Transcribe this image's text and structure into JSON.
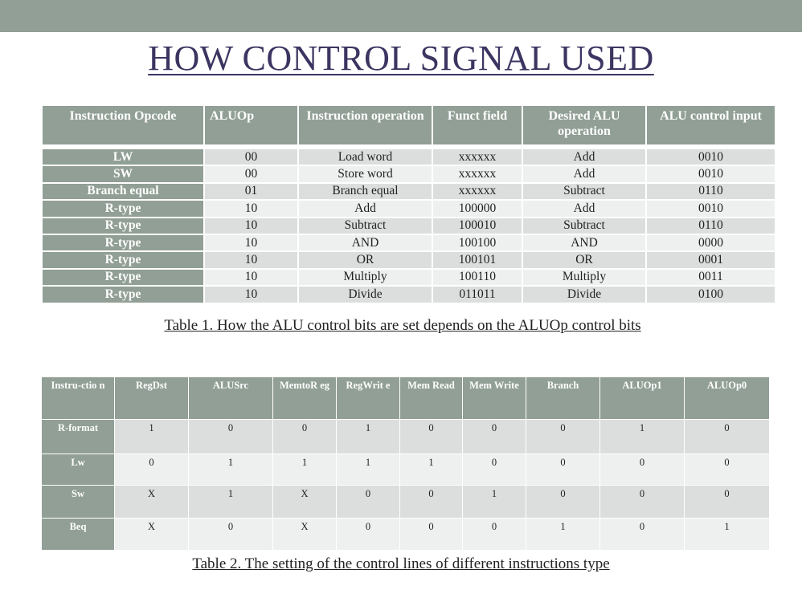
{
  "slide": {
    "title": "HOW CONTROL SIGNAL USED",
    "colors": {
      "header_bg": "#919f96",
      "row_odd": "#dcdedd",
      "row_even": "#eeefef",
      "title": "#3b3561"
    }
  },
  "table1": {
    "headers": [
      "Instruction Opcode",
      "ALUOp",
      "Instruction operation",
      "Funct field",
      "Desired ALU operation",
      "ALU control input"
    ],
    "rows": [
      [
        "LW",
        "00",
        "Load word",
        "xxxxxx",
        "Add",
        "0010"
      ],
      [
        "SW",
        "00",
        "Store word",
        "xxxxxx",
        "Add",
        "0010"
      ],
      [
        "Branch equal",
        "01",
        "Branch equal",
        "xxxxxx",
        "Subtract",
        "0110"
      ],
      [
        "R-type",
        "10",
        "Add",
        "100000",
        "Add",
        "0010"
      ],
      [
        "R-type",
        "10",
        "Subtract",
        "100010",
        "Subtract",
        "0110"
      ],
      [
        "R-type",
        "10",
        "AND",
        "100100",
        "AND",
        "0000"
      ],
      [
        "R-type",
        "10",
        "OR",
        "100101",
        "OR",
        "0001"
      ],
      [
        "R-type",
        "10",
        "Multiply",
        "100110",
        "Multiply",
        "0011"
      ],
      [
        "R-type",
        "10",
        "Divide",
        "011011",
        "Divide",
        "0100"
      ]
    ],
    "caption": "Table 1. How the ALU control bits are set depends on the ALUOp control bits"
  },
  "table2": {
    "headers": [
      "Instru-ctio n",
      "RegDst",
      "ALUSrc",
      "MemtoR eg",
      "RegWrit e",
      "Mem Read",
      "Mem Write",
      "Branch",
      "ALUOp1",
      "ALUOp0"
    ],
    "rows": [
      [
        "R-format",
        "1",
        "0",
        "0",
        "1",
        "0",
        "0",
        "0",
        "1",
        "0"
      ],
      [
        "Lw",
        "0",
        "1",
        "1",
        "1",
        "1",
        "0",
        "0",
        "0",
        "0"
      ],
      [
        "Sw",
        "X",
        "1",
        "X",
        "0",
        "0",
        "1",
        "0",
        "0",
        "0"
      ],
      [
        "Beq",
        "X",
        "0",
        "X",
        "0",
        "0",
        "0",
        "1",
        "0",
        "1"
      ]
    ],
    "caption": "Table 2. The setting of the control lines of different instructions type"
  }
}
